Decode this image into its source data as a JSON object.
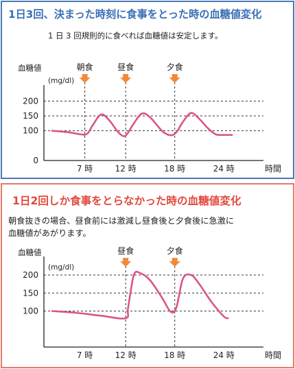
{
  "colors": {
    "top_border": "#4a78b8",
    "top_title": "#3a6fb5",
    "bottom_border": "#e8786a",
    "bottom_title": "#e2483c",
    "curve": "#d9548a",
    "meal_arrow": "#f08a3a",
    "dashed_line": "#333333"
  },
  "panels": [
    {
      "title": "1日3回、決まった時刻に食事をとった時の血糖値変化",
      "description_lines": [
        "1 日 3 回規則的に食べれば血糖値は安定します。"
      ]
    },
    {
      "title": "1日2回しか食事をとらなかった時の血糖値変化",
      "description_lines": [
        "朝食抜きの場合、昼食前には激減し昼食後と夕食後に急激に",
        "血糖値があがります。"
      ]
    }
  ],
  "chart_data": [
    {
      "type": "line",
      "ylabel": "血糖値",
      "yunit": "(mg/dl)",
      "xlabel": "時間",
      "x_ticks": [
        {
          "x": 7,
          "label": "7 時"
        },
        {
          "x": 12,
          "label": "12 時"
        },
        {
          "x": 18,
          "label": "18 時"
        },
        {
          "x": 24,
          "label": "24 時"
        }
      ],
      "y_ticks": [
        0,
        100,
        150,
        200
      ],
      "xlim": [
        2,
        27
      ],
      "ylim": [
        0,
        240
      ],
      "grid": "dashed horizontal at 100/150/200, dashed vertical at meals",
      "meals": [
        {
          "x": 7,
          "label": "朝食"
        },
        {
          "x": 12,
          "label": "昼食"
        },
        {
          "x": 18,
          "label": "夕食"
        }
      ],
      "series": [
        {
          "x": [
            3,
            5,
            6.5,
            7.3,
            8,
            9,
            10,
            11,
            11.7,
            12.2,
            13,
            14,
            15,
            16.5,
            17.5,
            18.2,
            19,
            20,
            21,
            22,
            23,
            24,
            25
          ],
          "y": [
            100,
            95,
            88,
            90,
            120,
            155,
            135,
            98,
            82,
            90,
            125,
            158,
            145,
            98,
            85,
            95,
            130,
            160,
            140,
            110,
            88,
            86,
            86
          ]
        }
      ]
    },
    {
      "type": "line",
      "ylabel": "血糖値",
      "yunit": "(mg/dl)",
      "xlabel": "時間",
      "x_ticks": [
        {
          "x": 7,
          "label": "7 時"
        },
        {
          "x": 12,
          "label": "12 時"
        },
        {
          "x": 18,
          "label": "18 時"
        },
        {
          "x": 24,
          "label": "24 時"
        }
      ],
      "y_ticks": [
        100,
        150,
        200
      ],
      "xlim": [
        2,
        27
      ],
      "ylim": [
        0,
        240
      ],
      "grid": "dashed horizontal at 100/150/200, dashed vertical at meals",
      "meals": [
        {
          "x": 12,
          "label": "昼食"
        },
        {
          "x": 18,
          "label": "夕食"
        }
      ],
      "series": [
        {
          "x": [
            3,
            6,
            9,
            12,
            12.3,
            13,
            13.8,
            15,
            16.5,
            17.5,
            18.2,
            19,
            20,
            21,
            22.5,
            24,
            24.5
          ],
          "y": [
            100,
            95,
            87,
            80,
            110,
            200,
            205,
            185,
            135,
            98,
            110,
            190,
            200,
            175,
            125,
            85,
            80
          ]
        }
      ]
    }
  ]
}
